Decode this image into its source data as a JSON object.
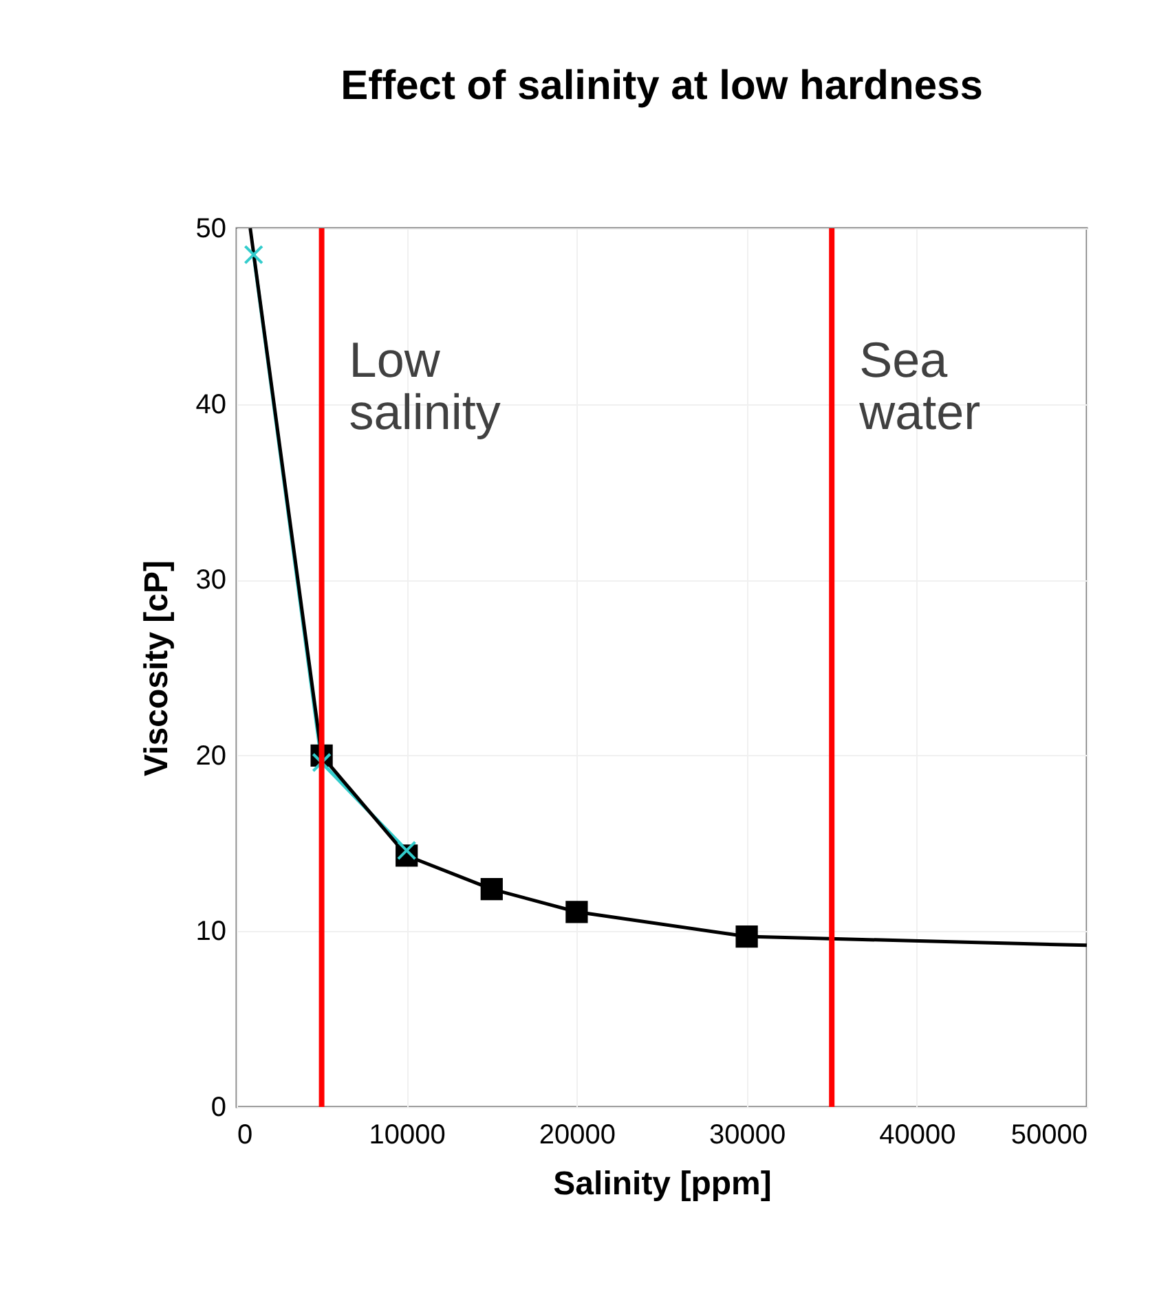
{
  "chart_data": {
    "type": "line",
    "title": "Effect of salinity at low hardness",
    "xlabel": "Salinity [ppm]",
    "ylabel": "Viscosity [cP]",
    "xlim": [
      0,
      50000
    ],
    "ylim": [
      0,
      50
    ],
    "xticks": [
      0,
      10000,
      20000,
      30000,
      40000,
      50000
    ],
    "yticks": [
      0,
      10,
      20,
      30,
      40,
      50
    ],
    "grid": true,
    "series": [
      {
        "color": "#33cccc",
        "marker": "cross",
        "x": [
          1000,
          5000,
          10000
        ],
        "values": [
          48.5,
          19.6,
          14.6
        ]
      },
      {
        "color": "#000000",
        "marker": "none",
        "x": [
          800,
          5000,
          10000,
          15000,
          20000,
          30000,
          50000
        ],
        "values": [
          50,
          20,
          14.3,
          12.4,
          11.1,
          9.7,
          9.2
        ]
      },
      {
        "type": "scatter",
        "color": "#000000",
        "marker": "square",
        "x": [
          5000,
          10000,
          15000,
          20000,
          30000
        ],
        "values": [
          20,
          14.3,
          12.4,
          11.1,
          9.7
        ]
      }
    ],
    "ref_lines": [
      {
        "axis": "x",
        "value": 5000,
        "label": "Low salinity",
        "color": "#ff0000"
      },
      {
        "axis": "x",
        "value": 35000,
        "label": "Sea water",
        "color": "#ff0000"
      }
    ]
  }
}
